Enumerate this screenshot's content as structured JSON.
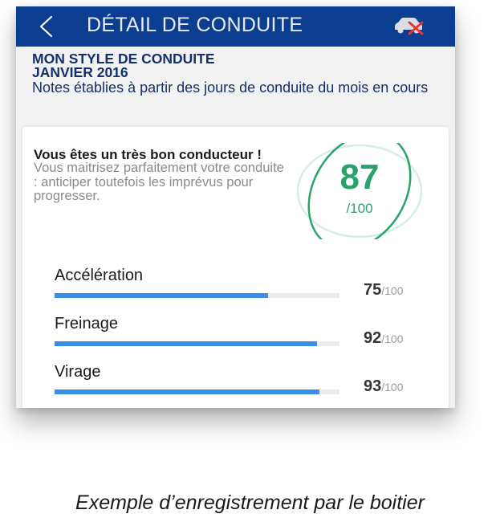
{
  "topbar": {
    "title": "DÉTAIL DE CONDUITE",
    "back_icon": "chevron-left-icon",
    "car_icon": "car-crossed-icon"
  },
  "header": {
    "line1": "MON STYLE DE CONDUITE",
    "line2": "JANVIER 2016",
    "description": "Notes établies à partir des jours de conduite du mois en cours"
  },
  "verdict": {
    "title": "Vous êtes un très bon conducteur !",
    "text": "Vous maitrisez parfaitement votre conduite : anticiper toutefois les imprévus pour progresser."
  },
  "score": {
    "value": "87",
    "max": "/100",
    "fraction": 0.87
  },
  "metrics": [
    {
      "label": "Accélération",
      "value": "75",
      "max": "/100",
      "fraction": 0.75
    },
    {
      "label": "Freinage",
      "value": "92",
      "max": "/100",
      "fraction": 0.92
    },
    {
      "label": "Virage",
      "value": "93",
      "max": "/100",
      "fraction": 0.93
    }
  ],
  "caption": "Exemple d’enregistrement par le boitier",
  "colors": {
    "topbar": "#0b3d91",
    "header_text": "#14306b",
    "score_green": "#2aa36b",
    "bar_blue": "#3b8ee6",
    "car_cross_red": "#e53935"
  }
}
